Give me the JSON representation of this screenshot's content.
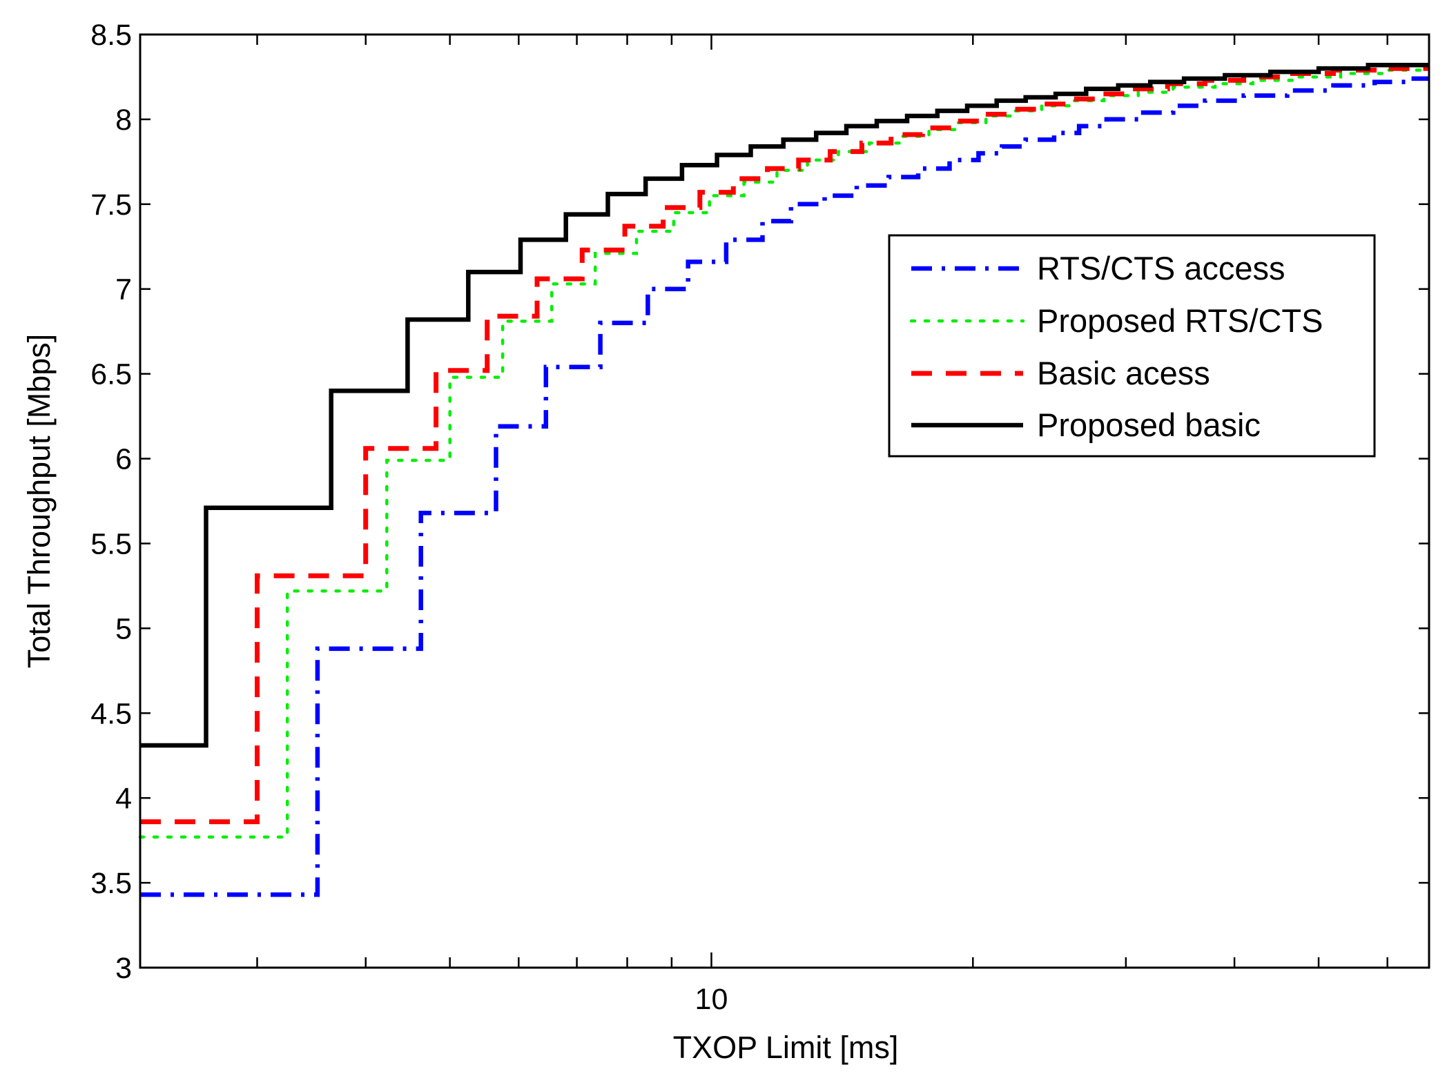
{
  "chart_data": {
    "type": "line",
    "title": "",
    "xlabel": "TXOP Limit [ms]",
    "ylabel": "Total Throughput [Mbps]",
    "xscale": "log",
    "xlim": [
      2.2,
      67
    ],
    "ylim": [
      3,
      8.5
    ],
    "grid": false,
    "legend_position": "upper-right",
    "x_ticks": [
      3,
      4,
      5,
      6,
      7,
      8,
      9,
      10,
      20,
      30,
      40,
      50,
      60
    ],
    "x_tick_labels": [
      {
        "value": 10,
        "label": "10"
      }
    ],
    "y_ticks": [
      3,
      3.5,
      4,
      4.5,
      5,
      5.5,
      6,
      6.5,
      7,
      7.5,
      8,
      8.5
    ],
    "y_tick_labels": [
      "3",
      "3.5",
      "4",
      "4.5",
      "5",
      "5.5",
      "6",
      "6.5",
      "7",
      "7.5",
      "8",
      "8.5"
    ],
    "series": [
      {
        "name": "RTS/CTS access",
        "color": "#0000ff",
        "dash": "dash-dot",
        "step_x": [
          3.52,
          4.63,
          5.65,
          6.45,
          7.45,
          8.45,
          9.4,
          10.4,
          11.45,
          12.35,
          13.5,
          14.7,
          16.0,
          17.3,
          18.8,
          20.3,
          21.6,
          23.0,
          24.8,
          26.5,
          28.5,
          31.0,
          34.0,
          37.0,
          41.0,
          46.0,
          52.0,
          58.0,
          63.0
        ],
        "step_y": [
          3.43,
          4.88,
          5.68,
          6.19,
          6.54,
          6.8,
          7.0,
          7.16,
          7.29,
          7.4,
          7.5,
          7.55,
          7.61,
          7.66,
          7.71,
          7.76,
          7.8,
          7.84,
          7.88,
          7.92,
          7.96,
          8.0,
          8.04,
          8.08,
          8.11,
          8.14,
          8.17,
          8.2,
          8.22
        ],
        "end_y": 8.24
      },
      {
        "name": "Proposed RTS/CTS",
        "color": "#00ee00",
        "dash": "dotted",
        "step_x": [
          3.25,
          4.23,
          5.0,
          5.75,
          6.55,
          7.35,
          8.2,
          9.05,
          9.95,
          10.9,
          11.9,
          12.9,
          14.0,
          15.2,
          16.5,
          17.8,
          19.2,
          20.7,
          22.3,
          24.0,
          26.0,
          28.3,
          31.0,
          34.0,
          38.0,
          42.0,
          47.0,
          53.0,
          60.0
        ],
        "step_y": [
          3.77,
          5.22,
          5.99,
          6.48,
          6.81,
          7.03,
          7.21,
          7.34,
          7.45,
          7.55,
          7.63,
          7.7,
          7.76,
          7.81,
          7.86,
          7.9,
          7.94,
          7.98,
          8.02,
          8.05,
          8.08,
          8.11,
          8.14,
          8.16,
          8.19,
          8.21,
          8.23,
          8.25,
          8.27
        ],
        "end_y": 8.29
      },
      {
        "name": "Basic acess",
        "color": "#ff0000",
        "dash": "dashed",
        "step_x": [
          3.0,
          4.0,
          4.82,
          5.52,
          6.3,
          7.1,
          7.95,
          8.8,
          9.7,
          10.6,
          11.6,
          12.6,
          13.7,
          14.9,
          16.1,
          17.5,
          18.9,
          20.4,
          22.1,
          23.8,
          25.8,
          28.0,
          30.5,
          33.5,
          37.0,
          41.0,
          46.0,
          52.0,
          59.0
        ],
        "step_y": [
          3.86,
          5.31,
          6.06,
          6.52,
          6.84,
          7.06,
          7.23,
          7.37,
          7.48,
          7.57,
          7.65,
          7.71,
          7.76,
          7.81,
          7.86,
          7.91,
          7.95,
          7.99,
          8.03,
          8.06,
          8.09,
          8.12,
          8.15,
          8.18,
          8.21,
          8.23,
          8.25,
          8.27,
          8.29
        ],
        "end_y": 8.3
      },
      {
        "name": "Proposed basic",
        "color": "#000000",
        "dash": "solid",
        "step_x": [
          2.62,
          3.65,
          4.47,
          5.25,
          6.03,
          6.8,
          7.6,
          8.4,
          9.25,
          10.15,
          11.1,
          12.1,
          13.2,
          14.3,
          15.5,
          16.8,
          18.2,
          19.7,
          21.3,
          23.0,
          24.9,
          27.0,
          29.4,
          32.0,
          35.0,
          39.0,
          44.0,
          50.0,
          57.0
        ],
        "step_y": [
          4.31,
          5.71,
          6.4,
          6.82,
          7.1,
          7.29,
          7.44,
          7.56,
          7.65,
          7.73,
          7.79,
          7.84,
          7.88,
          7.92,
          7.96,
          7.99,
          8.02,
          8.05,
          8.08,
          8.11,
          8.13,
          8.15,
          8.18,
          8.2,
          8.22,
          8.24,
          8.26,
          8.28,
          8.3
        ],
        "end_y": 8.32
      }
    ]
  }
}
